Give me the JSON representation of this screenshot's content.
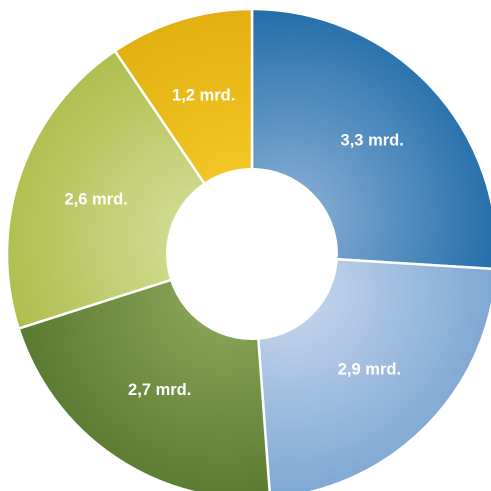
{
  "chart_data": {
    "type": "pie",
    "variant": "donut",
    "title": "",
    "legend": "none",
    "values": [
      3.3,
      2.9,
      2.7,
      2.6,
      1.2
    ],
    "labels": [
      "3,3 mrd.",
      "2,9 mrd.",
      "2,7 mrd.",
      "2,6 mrd.",
      "1,2 mrd."
    ],
    "colors": [
      [
        "#8fb2d8",
        "#0a5fa0"
      ],
      [
        "#cad9ee",
        "#6b9bcc"
      ],
      [
        "#8ea95c",
        "#4c6f26"
      ],
      [
        "#d6e09a",
        "#a6b43a"
      ],
      [
        "#f4cb2a",
        "#dea708"
      ]
    ]
  }
}
